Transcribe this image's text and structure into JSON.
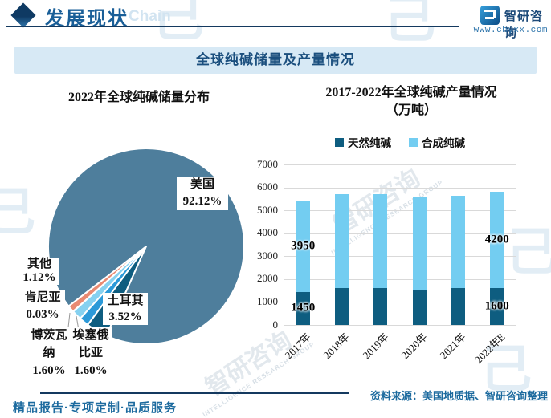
{
  "header": {
    "title": "发展现状",
    "watermark_text": "Chain",
    "brand": "智研咨询",
    "website": "www.chyxx.com"
  },
  "banner": {
    "title": "全球纯碱储量及产量情况"
  },
  "pie_section": {
    "title": "2022年全球纯碱储量分布",
    "labels": [
      {
        "name": "美国",
        "pct": "92.12%"
      },
      {
        "name": "其他",
        "pct": "1.12%"
      },
      {
        "name": "肯尼亚",
        "pct": "0.03%"
      },
      {
        "name": "博茨瓦纳",
        "pct": "1.60%"
      },
      {
        "name": "埃塞俄比亚",
        "pct": "1.60%"
      },
      {
        "name": "土耳其",
        "pct": "3.52%"
      }
    ]
  },
  "bar_section": {
    "title_line1": "2017-2022年全球纯碱产量情况",
    "title_line2": "（万吨）",
    "legend": [
      "天然纯碱",
      "合成纯碱"
    ]
  },
  "footer": {
    "tagline": "精品报告·专项定制·品质服务",
    "source": "资料来源：美国地质据、智研咨询整理"
  },
  "colors": {
    "accent_navy": "#14395f",
    "brand_blue": "#1c6a9e",
    "banner_bg": "#d7e9f5",
    "pie_main": "#4e7e9c",
    "bar_dark": "#0e5d80",
    "bar_light": "#73cdf1",
    "grid": "#d9d9d9"
  },
  "chart_data": [
    {
      "type": "pie",
      "title": "2022年全球纯碱储量分布",
      "unit": "%",
      "start_angle_deg_cw_from_top": 204,
      "direction": "clockwise",
      "slices": [
        {
          "label": "土耳其",
          "value": 3.52,
          "color": "#0e5d80"
        },
        {
          "label": "埃塞俄比亚",
          "value": 1.6,
          "color": "#2b99d8"
        },
        {
          "label": "博茨瓦纳",
          "value": 1.6,
          "color": "#86d1f0"
        },
        {
          "label": "肯尼亚",
          "value": 0.03,
          "color": "#ffffff"
        },
        {
          "label": "其他",
          "value": 1.12,
          "color": "#e98a72"
        },
        {
          "label": "美国",
          "value": 92.12,
          "color": "#4e7e9c"
        }
      ]
    },
    {
      "type": "bar",
      "stacked": true,
      "title": "2017-2022年全球纯碱产量情况（万吨）",
      "categories": [
        "2017年",
        "2018年",
        "2019年",
        "2020年",
        "2021年",
        "2022年E"
      ],
      "series": [
        {
          "name": "天然纯碱",
          "color": "#0e5d80",
          "values": [
            1450,
            1600,
            1600,
            1500,
            1600,
            1600
          ]
        },
        {
          "name": "合成纯碱",
          "color": "#73cdf1",
          "values": [
            3950,
            4100,
            4100,
            4050,
            4050,
            4200
          ]
        }
      ],
      "ylim": [
        0,
        7000
      ],
      "ytick_step": 1000,
      "grid": true,
      "legend_position": "top",
      "data_labels": [
        {
          "cat": 0,
          "series": 0,
          "text": "1450"
        },
        {
          "cat": 0,
          "series": 1,
          "text": "3950"
        },
        {
          "cat": 5,
          "series": 0,
          "text": "1600"
        },
        {
          "cat": 5,
          "series": 1,
          "text": "4200"
        }
      ]
    }
  ]
}
